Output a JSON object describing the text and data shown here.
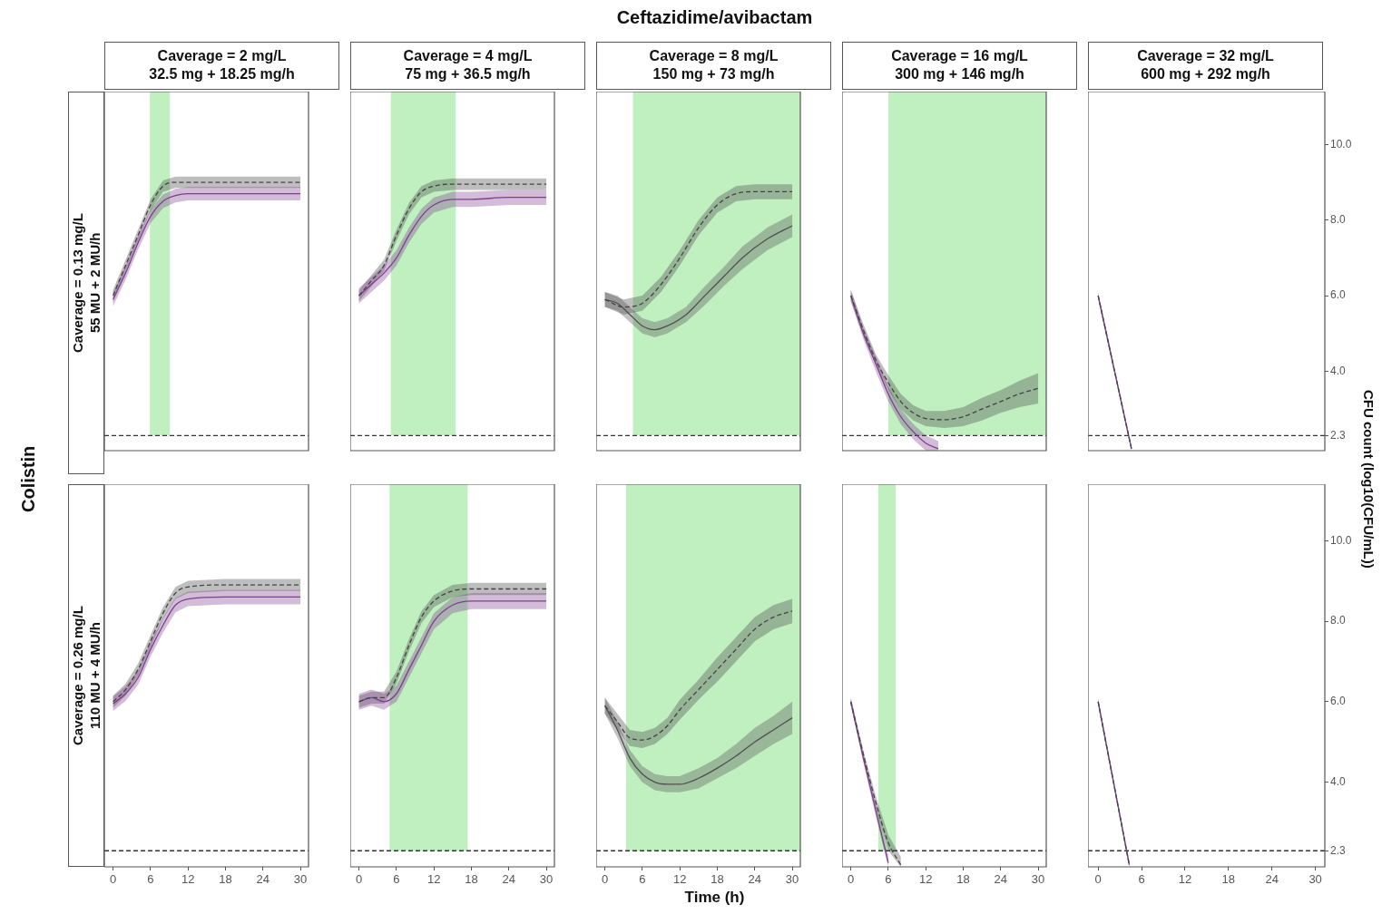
{
  "chart_data": [
    {
      "type": "line",
      "title": "Caverage = 2 mg/L\n32.5 mg + 18.25 mg/h",
      "ylabel": "Caverage = 0.13 mg/L\n55 MU + 2 MU/h",
      "annotations": [
        "Ceftazidime/avibactam",
        "Colistin"
      ],
      "xlim": [
        -1.4,
        31.3
      ],
      "xticks": [
        0,
        6,
        12,
        18,
        24,
        30
      ],
      "ylim": [
        1.9,
        11.4
      ],
      "tick_labels": false,
      "grid": false,
      "legend": false,
      "marker": "none",
      "ref_lines": [
        {
          "axis": "y",
          "value": 2.3,
          "color": "#333333",
          "line_style": "dashed"
        }
      ],
      "bands": [
        {
          "axis": "x",
          "from": 5.9,
          "to": 9.1,
          "color": "#c0efc0"
        }
      ],
      "series": [
        {
          "color": "#444444",
          "line_style": "dashed",
          "x": [
            0,
            2,
            4,
            6,
            8,
            10,
            12,
            18,
            24,
            30
          ],
          "values": [
            6.0,
            6.8,
            7.6,
            8.4,
            8.9,
            9.0,
            9.0,
            9.0,
            9.0,
            9.0
          ],
          "lower": [
            5.85,
            6.65,
            7.45,
            8.25,
            8.75,
            8.85,
            8.85,
            8.85,
            8.85,
            8.85
          ],
          "upper": [
            6.15,
            6.95,
            7.75,
            8.55,
            9.05,
            9.15,
            9.15,
            9.15,
            9.15,
            9.15
          ]
        },
        {
          "color": "#7e3f8f",
          "line_style": "solid",
          "x": [
            0,
            2,
            4,
            6,
            8,
            10,
            12,
            18,
            24,
            30
          ],
          "values": [
            5.9,
            6.6,
            7.4,
            8.1,
            8.5,
            8.65,
            8.7,
            8.7,
            8.7,
            8.7
          ],
          "lower": [
            5.72,
            6.42,
            7.22,
            7.92,
            8.32,
            8.47,
            8.52,
            8.52,
            8.52,
            8.52
          ],
          "upper": [
            6.08,
            6.78,
            7.58,
            8.28,
            8.68,
            8.83,
            8.88,
            8.88,
            8.88,
            8.88
          ]
        }
      ]
    },
    {
      "type": "line",
      "title": "Caverage = 4 mg/L\n75 mg + 36.5 mg/h",
      "xlim": [
        -1.4,
        31.3
      ],
      "xticks": [
        0,
        6,
        12,
        18,
        24,
        30
      ],
      "ylim": [
        1.9,
        11.4
      ],
      "tick_labels": false,
      "grid": false,
      "legend": false,
      "marker": "none",
      "ref_lines": [
        {
          "axis": "y",
          "value": 2.3,
          "color": "#333333",
          "line_style": "dashed"
        }
      ],
      "bands": [
        {
          "axis": "x",
          "from": 5.1,
          "to": 15.5,
          "color": "#c0efc0"
        }
      ],
      "series": [
        {
          "color": "#444444",
          "line_style": "dashed",
          "x": [
            0,
            2,
            4,
            6,
            8,
            10,
            12,
            15,
            18,
            24,
            30
          ],
          "values": [
            6.0,
            6.4,
            6.8,
            7.6,
            8.3,
            8.75,
            8.9,
            8.95,
            8.95,
            8.95,
            8.95
          ],
          "lower": [
            5.85,
            6.25,
            6.65,
            7.45,
            8.15,
            8.6,
            8.75,
            8.8,
            8.8,
            8.8,
            8.8
          ],
          "upper": [
            6.15,
            6.55,
            6.95,
            7.75,
            8.45,
            8.9,
            9.05,
            9.1,
            9.1,
            9.1,
            9.1
          ]
        },
        {
          "color": "#7e3f8f",
          "line_style": "solid",
          "x": [
            0,
            2,
            4,
            6,
            8,
            10,
            12,
            15,
            18,
            24,
            30
          ],
          "values": [
            6.0,
            6.3,
            6.6,
            7.0,
            7.6,
            8.1,
            8.4,
            8.55,
            8.55,
            8.6,
            8.6
          ],
          "lower": [
            5.8,
            6.1,
            6.4,
            6.8,
            7.4,
            7.9,
            8.2,
            8.35,
            8.35,
            8.4,
            8.4
          ],
          "upper": [
            6.2,
            6.5,
            6.8,
            7.2,
            7.8,
            8.3,
            8.6,
            8.75,
            8.75,
            8.8,
            8.8
          ]
        }
      ]
    },
    {
      "type": "line",
      "title": "Caverage = 8 mg/L\n150 mg + 73 mg/h",
      "xlim": [
        -1.4,
        31.3
      ],
      "xticks": [
        0,
        6,
        12,
        18,
        24,
        30
      ],
      "ylim": [
        1.9,
        11.4
      ],
      "tick_labels": false,
      "grid": false,
      "legend": false,
      "marker": "none",
      "ref_lines": [
        {
          "axis": "y",
          "value": 2.3,
          "color": "#333333",
          "line_style": "dashed"
        }
      ],
      "bands": [
        {
          "axis": "x",
          "from": 4.5,
          "to": 31.3,
          "color": "#c0efc0"
        }
      ],
      "series": [
        {
          "color": "#444444",
          "line_style": "dashed",
          "x": [
            0,
            3,
            6,
            9,
            12,
            15,
            18,
            21,
            24,
            30
          ],
          "values": [
            5.9,
            5.7,
            5.8,
            6.3,
            7.0,
            7.8,
            8.4,
            8.7,
            8.75,
            8.75
          ],
          "lower": [
            5.7,
            5.5,
            5.6,
            6.1,
            6.8,
            7.6,
            8.2,
            8.5,
            8.55,
            8.55
          ],
          "upper": [
            6.1,
            5.9,
            6.0,
            6.5,
            7.2,
            8.0,
            8.6,
            8.9,
            8.95,
            8.95
          ]
        },
        {
          "color": "#505050",
          "line_style": "solid",
          "x": [
            0,
            2,
            4,
            6,
            8,
            10,
            13,
            16,
            19,
            22,
            26,
            30
          ],
          "values": [
            5.9,
            5.8,
            5.5,
            5.2,
            5.1,
            5.2,
            5.5,
            6.0,
            6.5,
            7.0,
            7.5,
            7.85
          ],
          "lower": [
            5.7,
            5.6,
            5.3,
            5.0,
            4.9,
            5.0,
            5.3,
            5.75,
            6.25,
            6.7,
            7.2,
            7.55
          ],
          "upper": [
            6.1,
            6.0,
            5.7,
            5.4,
            5.3,
            5.4,
            5.7,
            6.25,
            6.75,
            7.3,
            7.8,
            8.15
          ]
        }
      ]
    },
    {
      "type": "line",
      "title": "Caverage = 16 mg/L\n300 mg + 146 mg/h",
      "xlim": [
        -1.4,
        31.3
      ],
      "xticks": [
        0,
        6,
        12,
        18,
        24,
        30
      ],
      "ylim": [
        1.9,
        11.4
      ],
      "tick_labels": false,
      "grid": false,
      "legend": false,
      "marker": "none",
      "ref_lines": [
        {
          "axis": "y",
          "value": 2.3,
          "color": "#333333",
          "line_style": "dashed"
        }
      ],
      "bands": [
        {
          "axis": "x",
          "from": 6.0,
          "to": 31.3,
          "color": "#c0efc0"
        }
      ],
      "series": [
        {
          "color": "#444444",
          "line_style": "dashed",
          "x": [
            0,
            2,
            4,
            6,
            8,
            10,
            12,
            15,
            18,
            21,
            24,
            27,
            30
          ],
          "values": [
            6.0,
            5.1,
            4.3,
            3.7,
            3.2,
            2.9,
            2.75,
            2.72,
            2.8,
            3.0,
            3.2,
            3.4,
            3.55
          ],
          "lower": [
            5.85,
            4.95,
            4.15,
            3.5,
            3.0,
            2.7,
            2.55,
            2.5,
            2.55,
            2.7,
            2.9,
            3.05,
            3.15
          ],
          "upper": [
            6.15,
            5.25,
            4.45,
            3.9,
            3.4,
            3.1,
            2.95,
            2.95,
            3.05,
            3.3,
            3.5,
            3.75,
            3.95
          ]
        },
        {
          "color": "#7e3f8f",
          "line_style": "solid",
          "x": [
            0,
            2,
            4,
            6,
            8,
            10,
            12,
            14
          ],
          "values": [
            6.0,
            5.0,
            4.2,
            3.4,
            2.8,
            2.4,
            2.1,
            1.95
          ],
          "lower": [
            5.85,
            4.85,
            4.0,
            3.2,
            2.6,
            2.2,
            1.9,
            1.9
          ],
          "upper": [
            6.15,
            5.15,
            4.4,
            3.6,
            3.0,
            2.6,
            2.3,
            2.15
          ]
        }
      ]
    },
    {
      "type": "line",
      "title": "Caverage = 32 mg/L\n600 mg + 292 mg/h",
      "y2label": "CFU count (log10(CFU/mL))",
      "xlim": [
        -1.4,
        31.3
      ],
      "xticks": [
        0,
        6,
        12,
        18,
        24,
        30
      ],
      "ylim": [
        1.9,
        11.4
      ],
      "yticks": [
        {
          "value": 2.3,
          "label": "2.3"
        },
        {
          "value": 4,
          "label": "4.0"
        },
        {
          "value": 6,
          "label": "6.0"
        },
        {
          "value": 8,
          "label": "8.0"
        },
        {
          "value": 10,
          "label": "10.0"
        }
      ],
      "tick_labels": "y",
      "grid": false,
      "legend": false,
      "marker": "none",
      "ref_lines": [
        {
          "axis": "y",
          "value": 2.3,
          "color": "#333333",
          "line_style": "dashed"
        }
      ],
      "series": [
        {
          "color": "#444444",
          "line_style": "dashed",
          "x": [
            0,
            4.6
          ],
          "values": [
            6.0,
            1.95
          ],
          "lower": [
            5.95,
            1.9
          ],
          "upper": [
            6.05,
            2.0
          ]
        },
        {
          "color": "#7e3f8f",
          "line_style": "solid",
          "x": [
            0,
            4.6
          ],
          "values": [
            6.0,
            1.95
          ],
          "lower": [
            5.9,
            1.9
          ],
          "upper": [
            6.1,
            2.05
          ]
        }
      ]
    },
    {
      "type": "line",
      "ylabel": "Caverage = 0.26 mg/L\n110 MU + 4 MU/h",
      "xlim": [
        -1.4,
        31.3
      ],
      "xticks": [
        0,
        6,
        12,
        18,
        24,
        30
      ],
      "ylim": [
        1.9,
        11.4
      ],
      "tick_labels": "x",
      "grid": false,
      "legend": false,
      "marker": "none",
      "ref_lines": [
        {
          "axis": "y",
          "value": 2.3,
          "color": "#333333",
          "line_style": "dashed"
        }
      ],
      "series": [
        {
          "color": "#444444",
          "line_style": "dashed",
          "x": [
            0,
            2,
            4,
            6,
            8,
            10,
            12,
            18,
            24,
            30
          ],
          "values": [
            6.0,
            6.3,
            6.8,
            7.5,
            8.2,
            8.7,
            8.85,
            8.9,
            8.9,
            8.9
          ],
          "lower": [
            5.85,
            6.15,
            6.65,
            7.35,
            8.05,
            8.55,
            8.7,
            8.75,
            8.75,
            8.75
          ],
          "upper": [
            6.15,
            6.45,
            6.95,
            7.65,
            8.35,
            8.85,
            9.0,
            9.05,
            9.05,
            9.05
          ]
        },
        {
          "color": "#7e3f8f",
          "line_style": "solid",
          "x": [
            0,
            2,
            4,
            6,
            8,
            10,
            12,
            18,
            24,
            30
          ],
          "values": [
            5.95,
            6.2,
            6.6,
            7.3,
            7.9,
            8.4,
            8.55,
            8.6,
            8.6,
            8.6
          ],
          "lower": [
            5.77,
            6.02,
            6.42,
            7.12,
            7.72,
            8.22,
            8.37,
            8.42,
            8.42,
            8.42
          ],
          "upper": [
            6.13,
            6.38,
            6.78,
            7.48,
            8.08,
            8.58,
            8.73,
            8.78,
            8.78,
            8.78
          ]
        }
      ]
    },
    {
      "type": "line",
      "xlim": [
        -1.4,
        31.3
      ],
      "xticks": [
        0,
        6,
        12,
        18,
        24,
        30
      ],
      "ylim": [
        1.9,
        11.4
      ],
      "tick_labels": "x",
      "grid": false,
      "legend": false,
      "marker": "none",
      "ref_lines": [
        {
          "axis": "y",
          "value": 2.3,
          "color": "#333333",
          "line_style": "dashed"
        }
      ],
      "bands": [
        {
          "axis": "x",
          "from": 4.9,
          "to": 17.4,
          "color": "#c0efc0"
        }
      ],
      "series": [
        {
          "color": "#444444",
          "line_style": "dashed",
          "x": [
            0,
            2,
            4,
            6,
            8,
            10,
            12,
            15,
            18,
            24,
            30
          ],
          "values": [
            6.0,
            6.1,
            6.1,
            6.6,
            7.4,
            8.1,
            8.5,
            8.75,
            8.8,
            8.8,
            8.8
          ],
          "lower": [
            5.85,
            5.95,
            5.95,
            6.45,
            7.25,
            7.95,
            8.35,
            8.6,
            8.65,
            8.65,
            8.65
          ],
          "upper": [
            6.15,
            6.25,
            6.25,
            6.75,
            7.55,
            8.25,
            8.65,
            8.9,
            8.95,
            8.95,
            8.95
          ]
        },
        {
          "color": "#7e3f8f",
          "line_style": "solid",
          "x": [
            0,
            2,
            4,
            6,
            8,
            10,
            12,
            15,
            18,
            24,
            30
          ],
          "values": [
            6.0,
            6.1,
            6.0,
            6.2,
            6.8,
            7.4,
            8.0,
            8.4,
            8.5,
            8.5,
            8.5
          ],
          "lower": [
            5.8,
            5.9,
            5.8,
            6.0,
            6.6,
            7.2,
            7.8,
            8.2,
            8.3,
            8.3,
            8.3
          ],
          "upper": [
            6.2,
            6.3,
            6.2,
            6.4,
            7.0,
            7.6,
            8.2,
            8.6,
            8.7,
            8.7,
            8.7
          ]
        }
      ]
    },
    {
      "type": "line",
      "xlabel": "Time (h)",
      "xlim": [
        -1.4,
        31.3
      ],
      "xticks": [
        0,
        6,
        12,
        18,
        24,
        30
      ],
      "ylim": [
        1.9,
        11.4
      ],
      "tick_labels": "x",
      "grid": false,
      "legend": false,
      "marker": "none",
      "ref_lines": [
        {
          "axis": "y",
          "value": 2.3,
          "color": "#333333",
          "line_style": "dashed"
        }
      ],
      "bands": [
        {
          "axis": "x",
          "from": 3.4,
          "to": 31.3,
          "color": "#c0efc0"
        }
      ],
      "series": [
        {
          "color": "#444444",
          "line_style": "dashed",
          "x": [
            0,
            2,
            4,
            6,
            8,
            10,
            12,
            15,
            18,
            21,
            24,
            27,
            30
          ],
          "values": [
            5.9,
            5.5,
            5.1,
            5.05,
            5.15,
            5.4,
            5.8,
            6.3,
            6.8,
            7.3,
            7.8,
            8.1,
            8.25
          ],
          "lower": [
            5.7,
            5.3,
            4.9,
            4.85,
            4.95,
            5.2,
            5.55,
            6.05,
            6.5,
            7.0,
            7.5,
            7.8,
            7.95
          ],
          "upper": [
            6.1,
            5.7,
            5.3,
            5.25,
            5.35,
            5.6,
            6.05,
            6.55,
            7.1,
            7.6,
            8.1,
            8.4,
            8.55
          ]
        },
        {
          "color": "#505050",
          "line_style": "solid",
          "x": [
            0,
            2,
            4,
            6,
            8,
            10,
            12,
            15,
            18,
            21,
            24,
            27,
            30
          ],
          "values": [
            5.9,
            5.3,
            4.6,
            4.2,
            4.0,
            3.95,
            3.95,
            4.1,
            4.35,
            4.65,
            5.0,
            5.3,
            5.6
          ],
          "lower": [
            5.7,
            5.1,
            4.4,
            4.0,
            3.8,
            3.75,
            3.75,
            3.85,
            4.1,
            4.35,
            4.65,
            4.95,
            5.2
          ],
          "upper": [
            6.1,
            5.5,
            4.8,
            4.4,
            4.2,
            4.15,
            4.15,
            4.35,
            4.6,
            4.95,
            5.35,
            5.65,
            6.0
          ]
        }
      ]
    },
    {
      "type": "line",
      "xlim": [
        -1.4,
        31.3
      ],
      "xticks": [
        0,
        6,
        12,
        18,
        24,
        30
      ],
      "ylim": [
        1.9,
        11.4
      ],
      "tick_labels": "x",
      "grid": false,
      "legend": false,
      "marker": "none",
      "ref_lines": [
        {
          "axis": "y",
          "value": 2.3,
          "color": "#333333",
          "line_style": "dashed"
        }
      ],
      "bands": [
        {
          "axis": "x",
          "from": 4.4,
          "to": 7.2,
          "color": "#c0efc0"
        }
      ],
      "series": [
        {
          "color": "#444444",
          "line_style": "dashed",
          "x": [
            0,
            2,
            4,
            6,
            8
          ],
          "values": [
            6.0,
            4.7,
            3.5,
            2.5,
            1.95
          ],
          "lower": [
            5.9,
            4.6,
            3.35,
            2.3,
            1.9
          ],
          "upper": [
            6.1,
            4.8,
            3.65,
            2.7,
            2.15
          ]
        },
        {
          "color": "#7e3f8f",
          "line_style": "solid",
          "x": [
            0,
            2,
            4,
            6
          ],
          "values": [
            6.0,
            4.6,
            3.3,
            2.0
          ],
          "lower": [
            5.9,
            4.5,
            3.15,
            1.9
          ],
          "upper": [
            6.1,
            4.7,
            3.45,
            2.2
          ]
        }
      ]
    },
    {
      "type": "line",
      "xlim": [
        -1.4,
        31.3
      ],
      "xticks": [
        0,
        6,
        12,
        18,
        24,
        30
      ],
      "ylim": [
        1.9,
        11.4
      ],
      "yticks": [
        {
          "value": 2.3,
          "label": "2.3"
        },
        {
          "value": 4,
          "label": "4.0"
        },
        {
          "value": 6,
          "label": "6.0"
        },
        {
          "value": 8,
          "label": "8.0"
        },
        {
          "value": 10,
          "label": "10.0"
        }
      ],
      "grid": false,
      "legend": false,
      "marker": "none",
      "ref_lines": [
        {
          "axis": "y",
          "value": 2.3,
          "color": "#333333",
          "line_style": "dashed"
        }
      ],
      "series": [
        {
          "color": "#444444",
          "line_style": "dashed",
          "x": [
            0,
            4.3
          ],
          "values": [
            6.0,
            1.95
          ],
          "lower": [
            5.95,
            1.9
          ],
          "upper": [
            6.05,
            2.0
          ]
        },
        {
          "color": "#7e3f8f",
          "line_style": "solid",
          "x": [
            0,
            4.3
          ],
          "values": [
            6.0,
            1.95
          ],
          "lower": [
            5.9,
            1.9
          ],
          "upper": [
            6.1,
            2.05
          ]
        }
      ]
    }
  ]
}
